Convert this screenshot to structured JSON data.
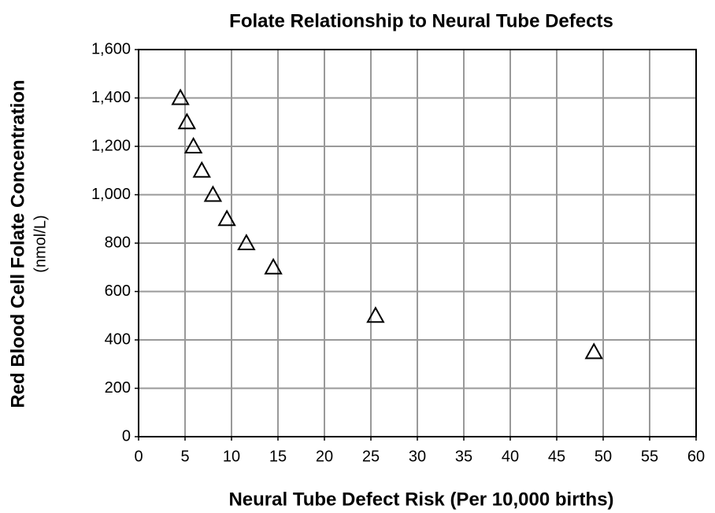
{
  "chart_data": {
    "type": "scatter",
    "title": "Folate Relationship to Neural Tube Defects",
    "xlabel": "Neural Tube Defect Risk (Per 10,000 births)",
    "ylabel": "Red Blood Cell Folate Concentration",
    "ylabel_unit": "(nmol/L)",
    "marker": "triangle",
    "color": "#000000",
    "grid": true,
    "x": [
      4.5,
      5.2,
      5.9,
      6.8,
      8,
      9.5,
      11.6,
      14.5,
      25.5,
      49
    ],
    "values": [
      1400,
      1300,
      1200,
      1100,
      1000,
      900,
      800,
      700,
      500,
      350
    ],
    "xlim": [
      0,
      60
    ],
    "xticks": [
      0,
      5,
      10,
      15,
      20,
      25,
      30,
      35,
      40,
      45,
      50,
      55,
      60
    ],
    "ylim": [
      0,
      1600
    ],
    "yticks": [
      0,
      200,
      400,
      600,
      800,
      {
        "value": 1000,
        "label": "1,000"
      },
      {
        "value": 1200,
        "label": "1,200"
      },
      {
        "value": 1400,
        "label": "1,400"
      },
      {
        "value": 1600,
        "label": "1,600"
      }
    ]
  }
}
